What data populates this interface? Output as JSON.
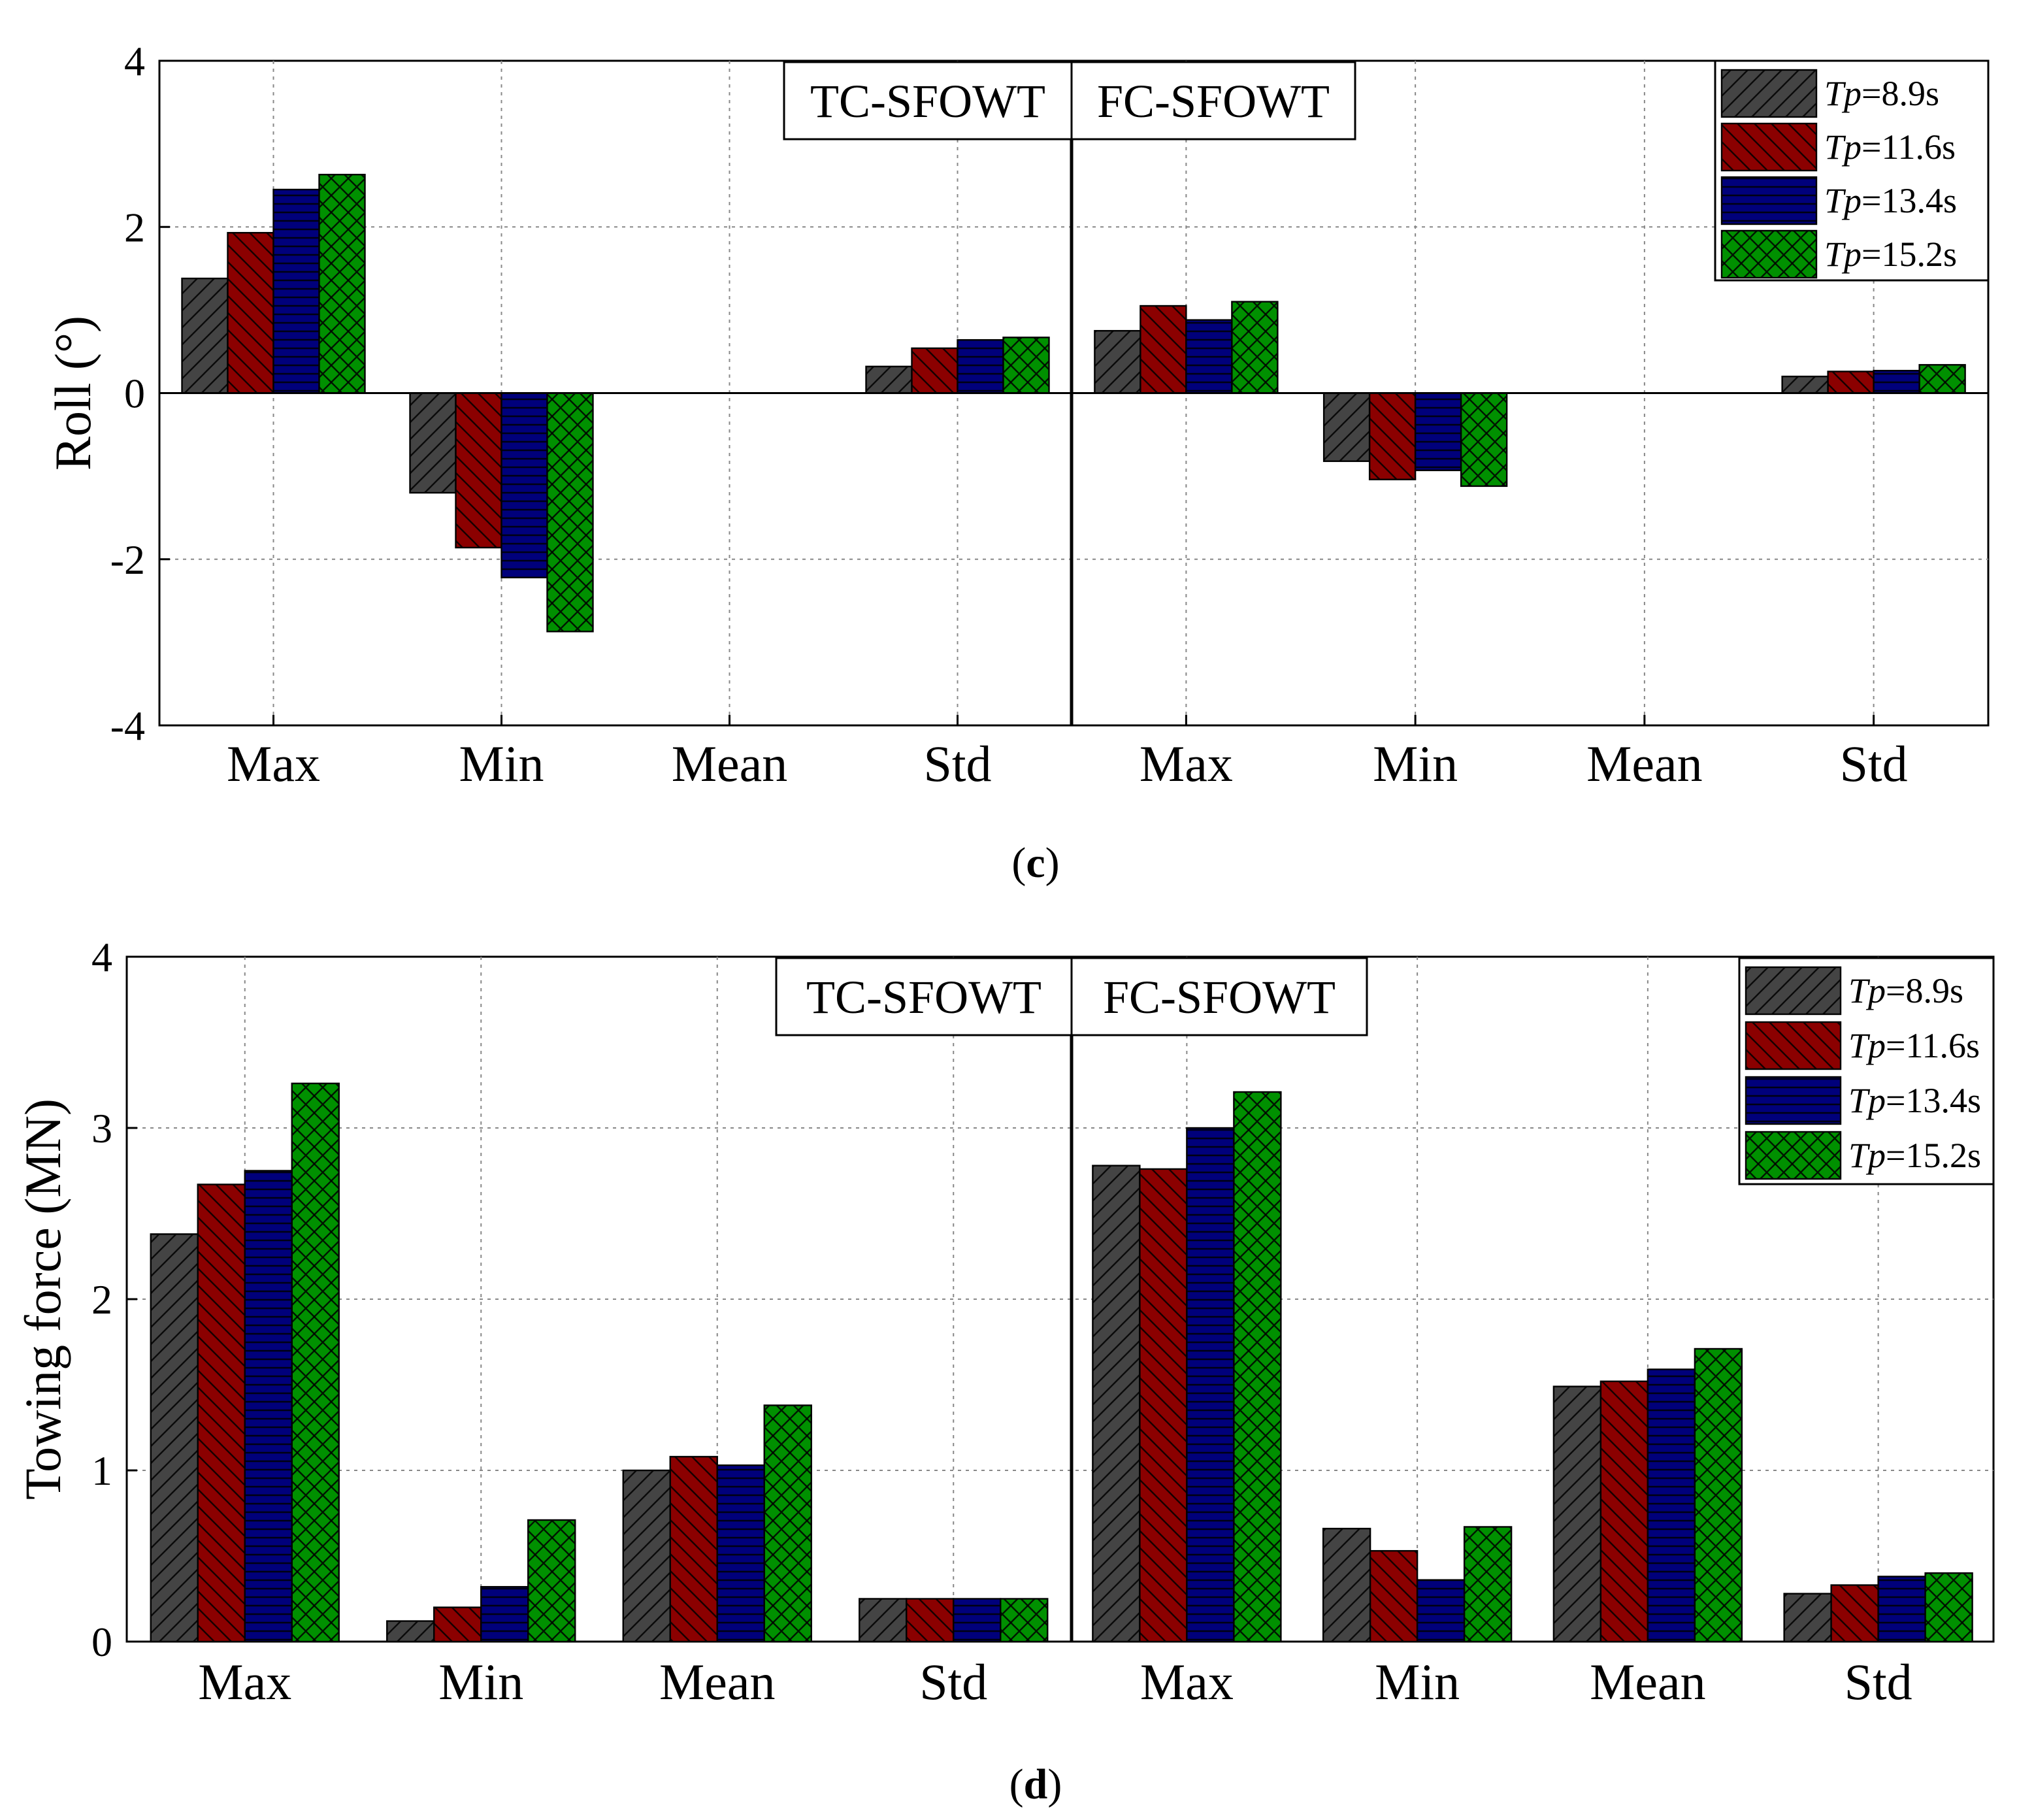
{
  "chart_data": [
    {
      "id": "c",
      "type": "bar",
      "caption_letter": "c",
      "ylabel": "Roll (°)",
      "ylim": [
        -4,
        4
      ],
      "yticks": [
        -4,
        -2,
        0,
        2,
        4
      ],
      "ytick_labels": [
        "-4",
        "-2",
        "0",
        "2",
        "4"
      ],
      "grid": true,
      "groups": [
        "TC-SFOWT",
        "FC-SFOWT"
      ],
      "categories": [
        "Max",
        "Min",
        "Mean",
        "Std"
      ],
      "legend_position": "top-right",
      "series": [
        {
          "name": "Tp=8.9s",
          "tp_label": "Tp",
          "tp_value": "=8.9s",
          "color": "#444444",
          "pattern": "diag-right",
          "values": {
            "TC-SFOWT": [
              1.38,
              -1.2,
              0,
              0.32
            ],
            "FC-SFOWT": [
              0.75,
              -0.82,
              0,
              0.2
            ]
          }
        },
        {
          "name": "Tp=11.6s",
          "tp_label": "Tp",
          "tp_value": "=11.6s",
          "color": "#8b0000",
          "pattern": "diag-left",
          "values": {
            "TC-SFOWT": [
              1.93,
              -1.86,
              0,
              0.54
            ],
            "FC-SFOWT": [
              1.05,
              -1.04,
              0,
              0.26
            ]
          }
        },
        {
          "name": "Tp=13.4s",
          "tp_label": "Tp",
          "tp_value": "=13.4s",
          "color": "#00007b",
          "pattern": "horizontal",
          "values": {
            "TC-SFOWT": [
              2.45,
              -2.22,
              0,
              0.64
            ],
            "FC-SFOWT": [
              0.88,
              -0.93,
              0,
              0.27
            ]
          }
        },
        {
          "name": "Tp=15.2s",
          "tp_label": "Tp",
          "tp_value": "=15.2s",
          "color": "#009000",
          "pattern": "cross",
          "values": {
            "TC-SFOWT": [
              2.63,
              -2.87,
              0,
              0.67
            ],
            "FC-SFOWT": [
              1.1,
              -1.12,
              0,
              0.34
            ]
          }
        }
      ]
    },
    {
      "id": "d",
      "type": "bar",
      "caption_letter": "d",
      "ylabel": "Towing force (MN)",
      "ylim": [
        0,
        4
      ],
      "yticks": [
        0,
        1,
        2,
        3,
        4
      ],
      "ytick_labels": [
        "0",
        "1",
        "2",
        "3",
        "4"
      ],
      "grid": true,
      "groups": [
        "TC-SFOWT",
        "FC-SFOWT"
      ],
      "categories": [
        "Max",
        "Min",
        "Mean",
        "Std"
      ],
      "legend_position": "top-right",
      "series": [
        {
          "name": "Tp=8.9s",
          "tp_label": "Tp",
          "tp_value": "=8.9s",
          "color": "#444444",
          "pattern": "diag-right",
          "values": {
            "TC-SFOWT": [
              2.38,
              0.12,
              1.0,
              0.25
            ],
            "FC-SFOWT": [
              2.78,
              0.66,
              1.49,
              0.28
            ]
          }
        },
        {
          "name": "Tp=11.6s",
          "tp_label": "Tp",
          "tp_value": "=11.6s",
          "color": "#8b0000",
          "pattern": "diag-left",
          "values": {
            "TC-SFOWT": [
              2.67,
              0.2,
              1.08,
              0.25
            ],
            "FC-SFOWT": [
              2.76,
              0.53,
              1.52,
              0.33
            ]
          }
        },
        {
          "name": "Tp=13.4s",
          "tp_label": "Tp",
          "tp_value": "=13.4s",
          "color": "#00007b",
          "pattern": "horizontal",
          "values": {
            "TC-SFOWT": [
              2.75,
              0.32,
              1.03,
              0.25
            ],
            "FC-SFOWT": [
              3.0,
              0.36,
              1.59,
              0.38
            ]
          }
        },
        {
          "name": "Tp=15.2s",
          "tp_label": "Tp",
          "tp_value": "=15.2s",
          "color": "#009000",
          "pattern": "cross",
          "values": {
            "TC-SFOWT": [
              3.26,
              0.71,
              1.38,
              0.25
            ],
            "FC-SFOWT": [
              3.21,
              0.67,
              1.71,
              0.4
            ]
          }
        }
      ]
    }
  ]
}
